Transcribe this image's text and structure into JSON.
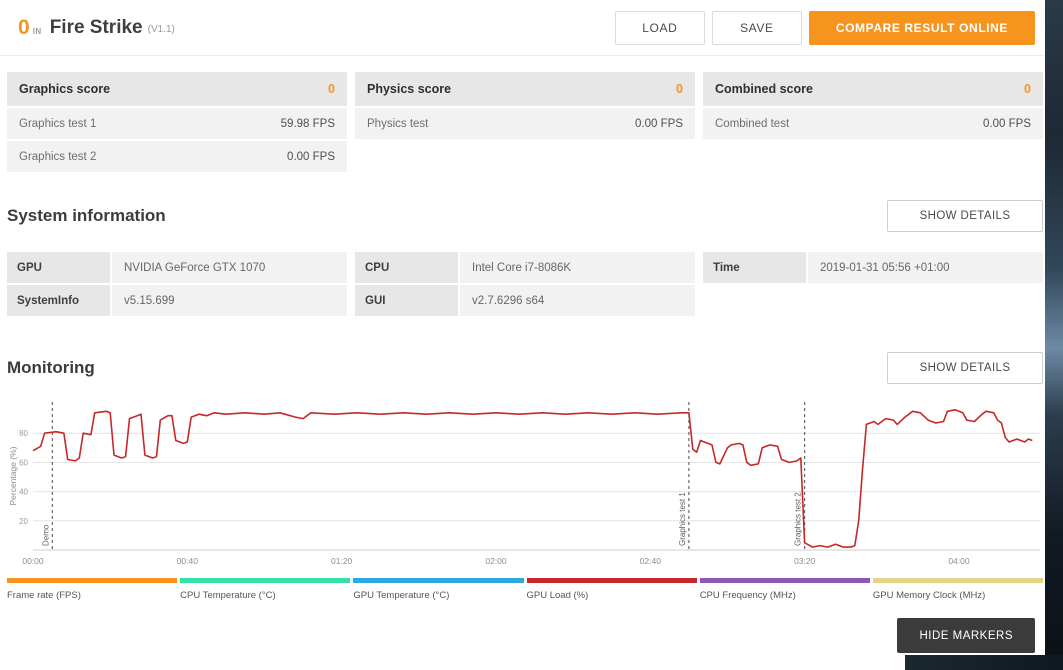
{
  "header": {
    "score_value": "0",
    "score_unit": "IN",
    "title": "Fire Strike",
    "version": "(V1.1)",
    "buttons": {
      "load": "LOAD",
      "save": "SAVE",
      "compare": "COMPARE RESULT ONLINE"
    }
  },
  "scores": [
    {
      "title": "Graphics score",
      "value": "0",
      "tests": [
        {
          "label": "Graphics test 1",
          "value": "59.98 FPS"
        },
        {
          "label": "Graphics test 2",
          "value": "0.00 FPS"
        }
      ]
    },
    {
      "title": "Physics score",
      "value": "0",
      "tests": [
        {
          "label": "Physics test",
          "value": "0.00 FPS"
        }
      ]
    },
    {
      "title": "Combined score",
      "value": "0",
      "tests": [
        {
          "label": "Combined test",
          "value": "0.00 FPS"
        }
      ]
    }
  ],
  "system_information": {
    "title": "System information",
    "show_details": "SHOW DETAILS",
    "rows": [
      [
        {
          "label": "GPU",
          "value": "NVIDIA GeForce GTX 1070"
        },
        {
          "label": "CPU",
          "value": "Intel Core i7-8086K"
        },
        {
          "label": "Time",
          "value": "2019-01-31 05:56 +01:00"
        }
      ],
      [
        {
          "label": "SystemInfo",
          "value": "v5.15.699"
        },
        {
          "label": "GUI",
          "value": "v2.7.6296 s64"
        }
      ]
    ]
  },
  "monitoring": {
    "title": "Monitoring",
    "show_details": "SHOW DETAILS",
    "hide_markers": "HIDE MARKERS"
  },
  "chart_data": {
    "type": "line",
    "title": "Monitoring",
    "xlabel": "",
    "ylabel": "Percentage (%)",
    "ylim": [
      0,
      100
    ],
    "yticks": [
      20,
      40,
      60,
      80
    ],
    "xticks": [
      "00:00",
      "00:40",
      "01:20",
      "02:00",
      "02:40",
      "03:20",
      "04:00"
    ],
    "xtick_seconds": [
      0,
      40,
      80,
      120,
      160,
      200,
      240
    ],
    "x_max_seconds": 261,
    "grid": "horizontal",
    "legend_position": "bottom",
    "markers": [
      {
        "label": "Demo",
        "t": 5
      },
      {
        "label": "Graphics test 1",
        "t": 170
      },
      {
        "label": "Graphics test 2",
        "t": 200
      }
    ],
    "series": [
      {
        "name": "GPU Load (%)",
        "color": "#c62828",
        "points": [
          [
            0,
            68
          ],
          [
            2,
            71
          ],
          [
            3,
            80
          ],
          [
            6,
            81
          ],
          [
            8,
            80
          ],
          [
            9,
            62
          ],
          [
            11,
            61
          ],
          [
            12,
            63
          ],
          [
            13,
            80
          ],
          [
            15,
            79
          ],
          [
            16,
            94
          ],
          [
            19,
            95
          ],
          [
            20,
            94
          ],
          [
            21,
            65
          ],
          [
            23,
            63
          ],
          [
            24,
            64
          ],
          [
            25,
            90
          ],
          [
            27,
            92
          ],
          [
            28,
            93
          ],
          [
            29,
            65
          ],
          [
            31,
            63
          ],
          [
            32,
            64
          ],
          [
            33,
            89
          ],
          [
            35,
            92
          ],
          [
            36,
            92
          ],
          [
            37,
            75
          ],
          [
            39,
            73
          ],
          [
            40,
            74
          ],
          [
            41,
            91
          ],
          [
            43,
            93
          ],
          [
            45,
            92
          ],
          [
            47,
            94
          ],
          [
            50,
            93
          ],
          [
            55,
            94
          ],
          [
            60,
            93
          ],
          [
            64,
            94
          ],
          [
            68,
            91
          ],
          [
            70,
            90
          ],
          [
            72,
            94
          ],
          [
            78,
            93
          ],
          [
            84,
            94
          ],
          [
            90,
            93
          ],
          [
            96,
            94
          ],
          [
            102,
            93
          ],
          [
            108,
            94
          ],
          [
            114,
            93
          ],
          [
            120,
            94
          ],
          [
            126,
            93
          ],
          [
            132,
            94
          ],
          [
            138,
            93
          ],
          [
            144,
            94
          ],
          [
            150,
            93
          ],
          [
            156,
            94
          ],
          [
            162,
            93
          ],
          [
            168,
            94
          ],
          [
            170,
            94
          ],
          [
            171,
            69
          ],
          [
            172,
            67
          ],
          [
            173,
            75
          ],
          [
            174,
            74
          ],
          [
            176,
            72
          ],
          [
            177,
            60
          ],
          [
            178,
            59
          ],
          [
            180,
            70
          ],
          [
            181,
            72
          ],
          [
            183,
            73
          ],
          [
            184,
            72
          ],
          [
            185,
            60
          ],
          [
            186,
            58
          ],
          [
            188,
            59
          ],
          [
            189,
            70
          ],
          [
            191,
            72
          ],
          [
            193,
            71
          ],
          [
            194,
            62
          ],
          [
            196,
            60
          ],
          [
            198,
            61
          ],
          [
            199,
            63
          ],
          [
            200,
            5
          ],
          [
            202,
            2
          ],
          [
            204,
            3
          ],
          [
            206,
            2
          ],
          [
            208,
            4
          ],
          [
            210,
            2
          ],
          [
            212,
            2
          ],
          [
            213,
            3
          ],
          [
            214,
            20
          ],
          [
            215,
            55
          ],
          [
            216,
            86
          ],
          [
            218,
            88
          ],
          [
            219,
            86
          ],
          [
            221,
            90
          ],
          [
            223,
            89
          ],
          [
            224,
            86
          ],
          [
            226,
            91
          ],
          [
            228,
            95
          ],
          [
            230,
            94
          ],
          [
            232,
            89
          ],
          [
            234,
            87
          ],
          [
            236,
            88
          ],
          [
            237,
            95
          ],
          [
            239,
            96
          ],
          [
            241,
            94
          ],
          [
            242,
            89
          ],
          [
            244,
            88
          ],
          [
            246,
            93
          ],
          [
            247,
            95
          ],
          [
            249,
            94
          ],
          [
            250,
            89
          ],
          [
            251,
            87
          ],
          [
            252,
            77
          ],
          [
            253,
            74
          ],
          [
            255,
            76
          ],
          [
            257,
            74
          ],
          [
            258,
            76
          ],
          [
            259,
            75
          ]
        ]
      }
    ],
    "legend": [
      {
        "label": "Frame rate (FPS)",
        "color": "#f7941e"
      },
      {
        "label": "CPU Temperature (°C)",
        "color": "#35e0a8"
      },
      {
        "label": "GPU Temperature (°C)",
        "color": "#2da8e0"
      },
      {
        "label": "GPU Load (%)",
        "color": "#c62828"
      },
      {
        "label": "CPU Frequency (MHz)",
        "color": "#8d57b5"
      },
      {
        "label": "GPU Memory Clock (MHz)",
        "color": "#e6d388"
      }
    ]
  }
}
